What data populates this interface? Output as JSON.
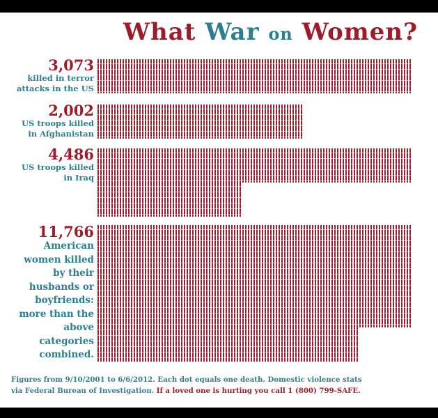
{
  "title": {
    "part1": "What",
    "part2": "War",
    "part3": "on",
    "part4": "Women?"
  },
  "colors": {
    "red": "#9b1c2a",
    "teal": "#2e7f8e",
    "dot": "#9b1c2a"
  },
  "chart_data": {
    "type": "bar",
    "title": "What War on Women?",
    "categories": [
      "killed in terror attacks in the US",
      "US troops killed in Afghanistan",
      "US troops killed in Iraq",
      "American women killed by their husbands or boyfriends: more than the above categories combined."
    ],
    "values": [
      3073,
      2002,
      4486,
      11766
    ],
    "value_labels": [
      "3,073",
      "2,002",
      "4,486",
      "11,766"
    ],
    "xlabel": "",
    "ylabel": "",
    "unit": "Each dot equals one death."
  },
  "groups": [
    {
      "number": "3,073",
      "desc_lines": [
        "killed in terror",
        "attacks in the US"
      ]
    },
    {
      "number": "2,002",
      "desc_lines": [
        "US troops killed",
        "in Afghanistan"
      ]
    },
    {
      "number": "4,486",
      "desc_lines": [
        "US troops killed",
        "in Iraq"
      ]
    },
    {
      "number": "11,766",
      "desc_lines": [
        "American",
        "women killed",
        "by their",
        "husbands or",
        "boyfriends:",
        "more than the",
        "above",
        "categories",
        "combined."
      ]
    }
  ],
  "footnote": {
    "line1": "Figures from 9/10/2001 to 6/6/2012. Each dot equals one death. Domestic violence stats",
    "line2_a": "via Federal Bureau of Investigation.",
    "line2_b": "If a loved one is hurting you call 1 (800) 799-SAFE."
  }
}
